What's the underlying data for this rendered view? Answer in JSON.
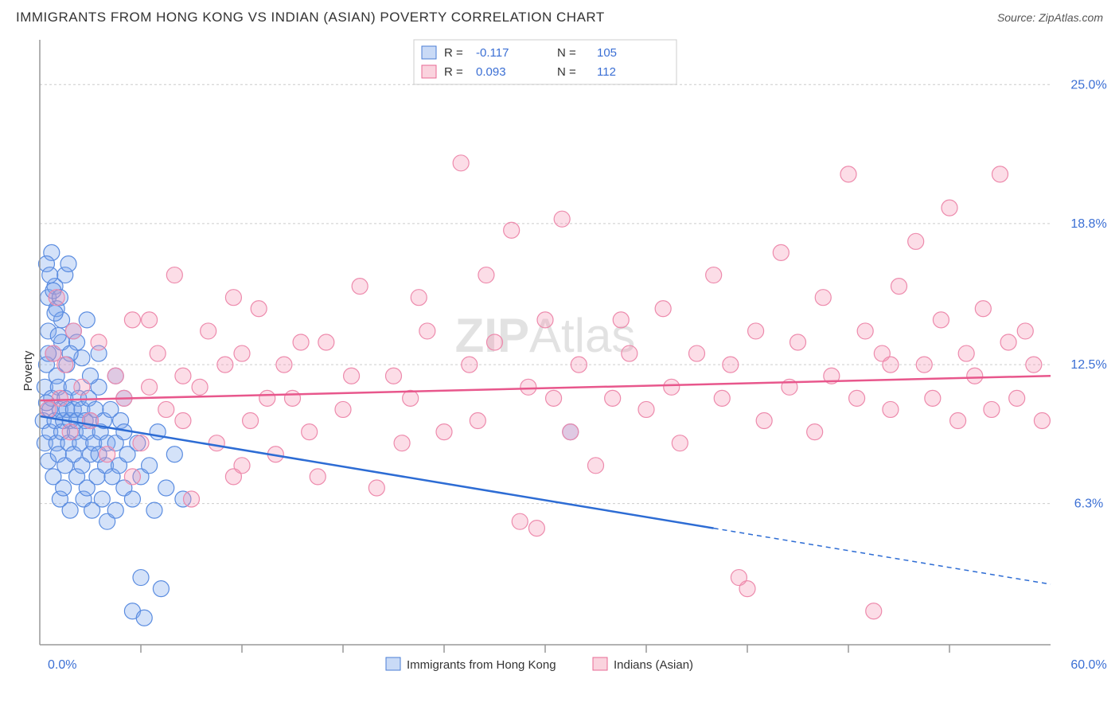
{
  "title": "IMMIGRANTS FROM HONG KONG VS INDIAN (ASIAN) POVERTY CORRELATION CHART",
  "source": "Source: ZipAtlas.com",
  "ylabel": "Poverty",
  "watermark_a": "ZIP",
  "watermark_b": "Atlas",
  "chart": {
    "type": "scatter",
    "background_color": "#ffffff",
    "grid_color": "#cccccc",
    "axis_color": "#999999",
    "label_color": "#3b6fd4",
    "xlim": [
      0,
      60
    ],
    "ylim": [
      0,
      27
    ],
    "y_ticks": [
      6.3,
      12.5,
      18.8,
      25.0
    ],
    "y_tick_labels": [
      "6.3%",
      "12.5%",
      "18.8%",
      "25.0%"
    ],
    "x_axis_labels": {
      "left": "0.0%",
      "right": "60.0%"
    },
    "x_minor_ticks": [
      6,
      12,
      18,
      24,
      30,
      36,
      42,
      48,
      54
    ],
    "marker_radius": 10,
    "marker_opacity": 0.35,
    "line_width": 2.5,
    "series": [
      {
        "name": "Immigrants from Hong Kong",
        "color_fill": "rgba(120,165,235,0.32)",
        "color_stroke": "#5a8ce0",
        "line_color": "#2d6cd4",
        "R": "-0.117",
        "N": "105",
        "regression": {
          "x1": 0,
          "y1": 10.2,
          "x2": 40,
          "y2": 5.2,
          "x2_dash": 60,
          "y2_dash": 2.7
        },
        "points": [
          [
            0.2,
            10.0
          ],
          [
            0.3,
            11.5
          ],
          [
            0.3,
            9.0
          ],
          [
            0.4,
            12.5
          ],
          [
            0.5,
            8.2
          ],
          [
            0.5,
            14.0
          ],
          [
            0.5,
            15.5
          ],
          [
            0.6,
            10.5
          ],
          [
            0.6,
            9.5
          ],
          [
            0.7,
            11.0
          ],
          [
            0.7,
            17.5
          ],
          [
            0.8,
            13.0
          ],
          [
            0.8,
            7.5
          ],
          [
            0.9,
            10.0
          ],
          [
            0.9,
            16.0
          ],
          [
            1.0,
            9.0
          ],
          [
            1.0,
            12.0
          ],
          [
            1.1,
            8.5
          ],
          [
            1.1,
            11.5
          ],
          [
            1.2,
            10.5
          ],
          [
            1.2,
            6.5
          ],
          [
            1.3,
            9.5
          ],
          [
            1.3,
            13.5
          ],
          [
            1.4,
            10.0
          ],
          [
            1.4,
            7.0
          ],
          [
            1.5,
            11.0
          ],
          [
            1.5,
            8.0
          ],
          [
            1.6,
            10.5
          ],
          [
            1.6,
            12.5
          ],
          [
            1.7,
            9.0
          ],
          [
            1.8,
            10.0
          ],
          [
            1.8,
            6.0
          ],
          [
            1.9,
            11.5
          ],
          [
            2.0,
            10.5
          ],
          [
            2.0,
            8.5
          ],
          [
            2.1,
            9.5
          ],
          [
            2.2,
            10.0
          ],
          [
            2.2,
            7.5
          ],
          [
            2.3,
            11.0
          ],
          [
            2.4,
            9.0
          ],
          [
            2.5,
            10.5
          ],
          [
            2.5,
            8.0
          ],
          [
            2.6,
            6.5
          ],
          [
            2.7,
            10.0
          ],
          [
            2.8,
            9.5
          ],
          [
            2.8,
            7.0
          ],
          [
            2.9,
            11.0
          ],
          [
            3.0,
            8.5
          ],
          [
            3.0,
            10.0
          ],
          [
            3.1,
            6.0
          ],
          [
            3.2,
            9.0
          ],
          [
            3.3,
            10.5
          ],
          [
            3.4,
            7.5
          ],
          [
            3.5,
            8.5
          ],
          [
            3.5,
            11.5
          ],
          [
            3.6,
            9.5
          ],
          [
            3.7,
            6.5
          ],
          [
            3.8,
            10.0
          ],
          [
            3.9,
            8.0
          ],
          [
            4.0,
            9.0
          ],
          [
            4.0,
            5.5
          ],
          [
            4.2,
            10.5
          ],
          [
            4.3,
            7.5
          ],
          [
            4.5,
            9.0
          ],
          [
            4.5,
            6.0
          ],
          [
            4.7,
            8.0
          ],
          [
            4.8,
            10.0
          ],
          [
            5.0,
            7.0
          ],
          [
            5.0,
            9.5
          ],
          [
            5.2,
            8.5
          ],
          [
            5.5,
            6.5
          ],
          [
            5.5,
            1.5
          ],
          [
            5.8,
            9.0
          ],
          [
            6.0,
            7.5
          ],
          [
            6.0,
            3.0
          ],
          [
            6.2,
            1.2
          ],
          [
            6.5,
            8.0
          ],
          [
            6.8,
            6.0
          ],
          [
            7.0,
            9.5
          ],
          [
            7.2,
            2.5
          ],
          [
            7.5,
            7.0
          ],
          [
            8.0,
            8.5
          ],
          [
            8.5,
            6.5
          ],
          [
            0.4,
            17.0
          ],
          [
            0.6,
            16.5
          ],
          [
            1.0,
            15.0
          ],
          [
            1.3,
            14.5
          ],
          [
            0.8,
            15.8
          ],
          [
            2.2,
            13.5
          ],
          [
            2.5,
            12.8
          ],
          [
            3.0,
            12.0
          ],
          [
            1.5,
            16.5
          ],
          [
            0.9,
            14.8
          ],
          [
            1.8,
            13.0
          ],
          [
            2.0,
            14.0
          ],
          [
            0.5,
            13.0
          ],
          [
            1.2,
            15.5
          ],
          [
            3.5,
            13.0
          ],
          [
            4.5,
            12.0
          ],
          [
            5.0,
            11.0
          ],
          [
            2.8,
            14.5
          ],
          [
            1.7,
            17.0
          ],
          [
            0.4,
            10.8
          ],
          [
            1.1,
            13.8
          ],
          [
            31.5,
            9.5
          ]
        ]
      },
      {
        "name": "Indians (Asian)",
        "color_fill": "rgba(245,150,180,0.32)",
        "color_stroke": "#ed8aac",
        "line_color": "#e8578c",
        "R": "0.093",
        "N": "112",
        "regression": {
          "x1": 0,
          "y1": 10.9,
          "x2": 60,
          "y2": 12.0
        },
        "points": [
          [
            0.5,
            10.5
          ],
          [
            0.8,
            13.0
          ],
          [
            1.0,
            15.5
          ],
          [
            1.2,
            11.0
          ],
          [
            1.5,
            12.5
          ],
          [
            1.8,
            9.5
          ],
          [
            2.0,
            14.0
          ],
          [
            2.5,
            11.5
          ],
          [
            3.0,
            10.0
          ],
          [
            3.5,
            13.5
          ],
          [
            4.0,
            8.5
          ],
          [
            4.5,
            12.0
          ],
          [
            5.0,
            11.0
          ],
          [
            5.5,
            14.5
          ],
          [
            6.0,
            9.0
          ],
          [
            6.5,
            11.5
          ],
          [
            7.0,
            13.0
          ],
          [
            7.5,
            10.5
          ],
          [
            8.0,
            16.5
          ],
          [
            8.5,
            12.0
          ],
          [
            9.0,
            6.5
          ],
          [
            9.5,
            11.5
          ],
          [
            10.0,
            14.0
          ],
          [
            10.5,
            9.0
          ],
          [
            11.0,
            12.5
          ],
          [
            11.5,
            7.5
          ],
          [
            12.0,
            13.0
          ],
          [
            12.5,
            10.0
          ],
          [
            13.0,
            15.0
          ],
          [
            13.5,
            11.0
          ],
          [
            14.0,
            8.5
          ],
          [
            14.5,
            12.5
          ],
          [
            15.0,
            11.0
          ],
          [
            16.0,
            9.5
          ],
          [
            17.0,
            13.5
          ],
          [
            18.0,
            10.5
          ],
          [
            19.0,
            16.0
          ],
          [
            20.0,
            7.0
          ],
          [
            21.0,
            12.0
          ],
          [
            22.0,
            11.0
          ],
          [
            23.0,
            14.0
          ],
          [
            24.0,
            9.5
          ],
          [
            25.0,
            21.5
          ],
          [
            25.5,
            12.5
          ],
          [
            26.0,
            10.0
          ],
          [
            27.0,
            13.5
          ],
          [
            28.0,
            18.5
          ],
          [
            28.5,
            5.5
          ],
          [
            29.0,
            11.5
          ],
          [
            29.5,
            5.2
          ],
          [
            30.0,
            14.5
          ],
          [
            30.5,
            11.0
          ],
          [
            31.0,
            19.0
          ],
          [
            31.5,
            9.5
          ],
          [
            32.0,
            12.5
          ],
          [
            33.0,
            8.0
          ],
          [
            34.0,
            11.0
          ],
          [
            34.5,
            14.5
          ],
          [
            35.0,
            13.0
          ],
          [
            36.0,
            10.5
          ],
          [
            37.0,
            15.0
          ],
          [
            37.5,
            11.5
          ],
          [
            38.0,
            9.0
          ],
          [
            39.0,
            13.0
          ],
          [
            40.0,
            16.5
          ],
          [
            40.5,
            11.0
          ],
          [
            41.0,
            12.5
          ],
          [
            42.0,
            2.5
          ],
          [
            42.5,
            14.0
          ],
          [
            43.0,
            10.0
          ],
          [
            44.0,
            17.5
          ],
          [
            44.5,
            11.5
          ],
          [
            45.0,
            13.5
          ],
          [
            46.0,
            9.5
          ],
          [
            46.5,
            15.5
          ],
          [
            47.0,
            12.0
          ],
          [
            48.0,
            21.0
          ],
          [
            48.5,
            11.0
          ],
          [
            49.0,
            14.0
          ],
          [
            49.5,
            1.5
          ],
          [
            50.0,
            13.0
          ],
          [
            50.5,
            10.5
          ],
          [
            51.0,
            16.0
          ],
          [
            52.0,
            18.0
          ],
          [
            52.5,
            12.5
          ],
          [
            53.0,
            11.0
          ],
          [
            53.5,
            14.5
          ],
          [
            54.0,
            19.5
          ],
          [
            54.5,
            10.0
          ],
          [
            55.0,
            13.0
          ],
          [
            55.5,
            12.0
          ],
          [
            56.0,
            15.0
          ],
          [
            56.5,
            10.5
          ],
          [
            57.0,
            21.0
          ],
          [
            57.5,
            13.5
          ],
          [
            58.0,
            11.0
          ],
          [
            58.5,
            14.0
          ],
          [
            59.0,
            12.5
          ],
          [
            59.5,
            10.0
          ],
          [
            5.5,
            7.5
          ],
          [
            8.5,
            10.0
          ],
          [
            12.0,
            8.0
          ],
          [
            15.5,
            13.5
          ],
          [
            18.5,
            12.0
          ],
          [
            22.5,
            15.5
          ],
          [
            6.5,
            14.5
          ],
          [
            11.5,
            15.5
          ],
          [
            16.5,
            7.5
          ],
          [
            21.5,
            9.0
          ],
          [
            26.5,
            16.5
          ],
          [
            50.5,
            12.5
          ],
          [
            41.5,
            3.0
          ]
        ]
      }
    ]
  },
  "stats_legend": {
    "R_label": "R =",
    "N_label": "N ="
  },
  "bottom_legend": {
    "series1": "Immigrants from Hong Kong",
    "series2": "Indians (Asian)"
  }
}
